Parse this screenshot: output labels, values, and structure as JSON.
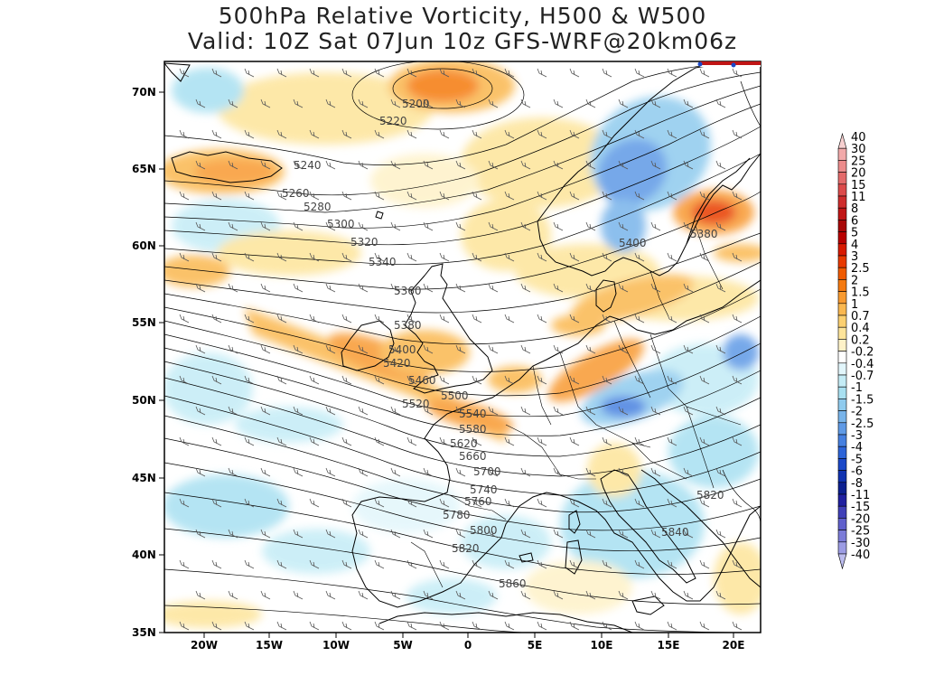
{
  "title": {
    "line1": "500hPa Relative Vorticity, H500 & W500",
    "line2": "Valid: 10Z Sat 07Jun 10z GFS-WRF@20km06z"
  },
  "lat_labels": [
    "70N",
    "65N",
    "60N",
    "55N",
    "50N",
    "45N",
    "40N",
    "35N"
  ],
  "lon_labels": [
    "20W",
    "15W",
    "10W",
    "5W",
    "0",
    "5E",
    "10E",
    "15E",
    "20E"
  ],
  "contour_labels": [
    "5200",
    "5220",
    "5240",
    "5260",
    "5280",
    "5300",
    "5320",
    "5340",
    "5360",
    "5380",
    "5400",
    "5420",
    "5460",
    "5500",
    "5520",
    "5540",
    "5580",
    "5620",
    "5660",
    "5700",
    "5740",
    "5760",
    "5780",
    "5800",
    "5820",
    "5860",
    "5400",
    "5380",
    "5820",
    "5840"
  ],
  "colorbar": {
    "labels": [
      "40",
      "30",
      "25",
      "20",
      "15",
      "11",
      "8",
      "6",
      "5",
      "4",
      "3",
      "2.5",
      "2",
      "1.5",
      "1",
      "0.7",
      "0.4",
      "0.2",
      "-0.2",
      "-0.4",
      "-0.7",
      "-1",
      "-1.5",
      "-2",
      "-2.5",
      "-3",
      "-4",
      "-5",
      "-6",
      "-8",
      "-11",
      "-15",
      "-20",
      "-25",
      "-30",
      "-40"
    ],
    "colors": [
      "#f7d0d0",
      "#f2aaaa",
      "#ec8c8c",
      "#e46b6b",
      "#dc4b4b",
      "#cf2d2d",
      "#c01515",
      "#a80808",
      "#b80000",
      "#d81a00",
      "#e83a00",
      "#f05a00",
      "#f57a10",
      "#f89a30",
      "#fab850",
      "#fcd070",
      "#fde49a",
      "#fef2c8",
      "#ffffff",
      "#e2f6fb",
      "#c4ecf6",
      "#a8e0f1",
      "#8fcbee",
      "#78b4ea",
      "#5f9ae6",
      "#4680e0",
      "#2d64d8",
      "#1a48c8",
      "#1032b0",
      "#0c2090",
      "#2020a0",
      "#4040b8",
      "#6060cc",
      "#7c7cd8",
      "#9c9ce4",
      "#bcbcee"
    ]
  },
  "colors": {
    "land_outline": "#000000",
    "contour": "#000000",
    "positive_vort": "#f8a020",
    "negative_vort": "#78b4ea"
  }
}
